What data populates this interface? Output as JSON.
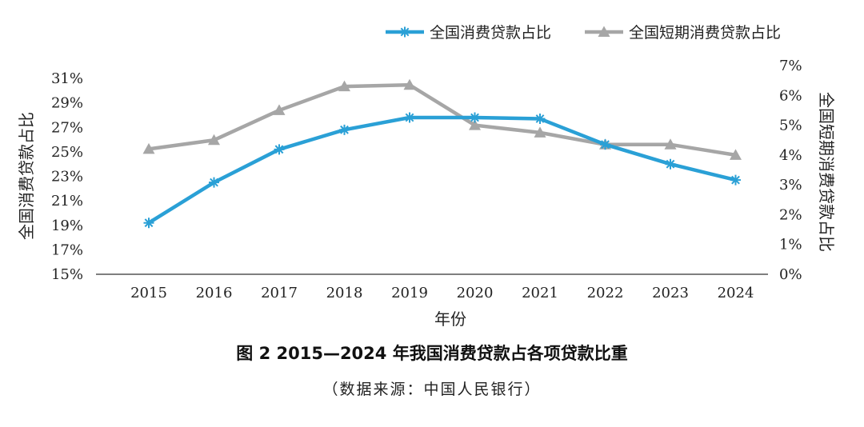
{
  "chart_data": {
    "type": "line",
    "categories": [
      "2015",
      "2016",
      "2017",
      "2018",
      "2019",
      "2020",
      "2021",
      "2022",
      "2023",
      "2024"
    ],
    "series": [
      {
        "name": "全国消费贷款占比",
        "axis": "left",
        "marker": "star",
        "color": "#2aa0d6",
        "values": [
          19.2,
          22.5,
          25.2,
          26.8,
          27.8,
          27.8,
          27.7,
          25.6,
          24.0,
          22.7
        ]
      },
      {
        "name": "全国短期消费贷款占比",
        "axis": "right",
        "marker": "triangle",
        "color": "#a6a6a6",
        "values": [
          4.2,
          4.5,
          5.5,
          6.3,
          6.35,
          5.0,
          4.75,
          4.35,
          4.35,
          4.0
        ]
      }
    ],
    "left_axis": {
      "label": "全国消费贷款占比",
      "ylim": [
        15,
        31
      ],
      "ticks": [
        15,
        17,
        19,
        21,
        23,
        25,
        27,
        29,
        31
      ],
      "tick_labels": [
        "15%",
        "17%",
        "19%",
        "21%",
        "23%",
        "25%",
        "27%",
        "29%",
        "31%"
      ]
    },
    "right_axis": {
      "label": "全国短期消费贷款占比",
      "ylim": [
        0,
        7
      ],
      "ticks": [
        0,
        1,
        2,
        3,
        4,
        5,
        6,
        7
      ],
      "tick_labels": [
        "0%",
        "1%",
        "2%",
        "3%",
        "4%",
        "5%",
        "6%",
        "7%"
      ]
    },
    "xlabel": "年份",
    "grid": false,
    "legend": "top-right",
    "title": "图 2 2015—2024 年我国消费贷款占各项贷款比重",
    "source": "（数据来源：中国人民银行）"
  }
}
